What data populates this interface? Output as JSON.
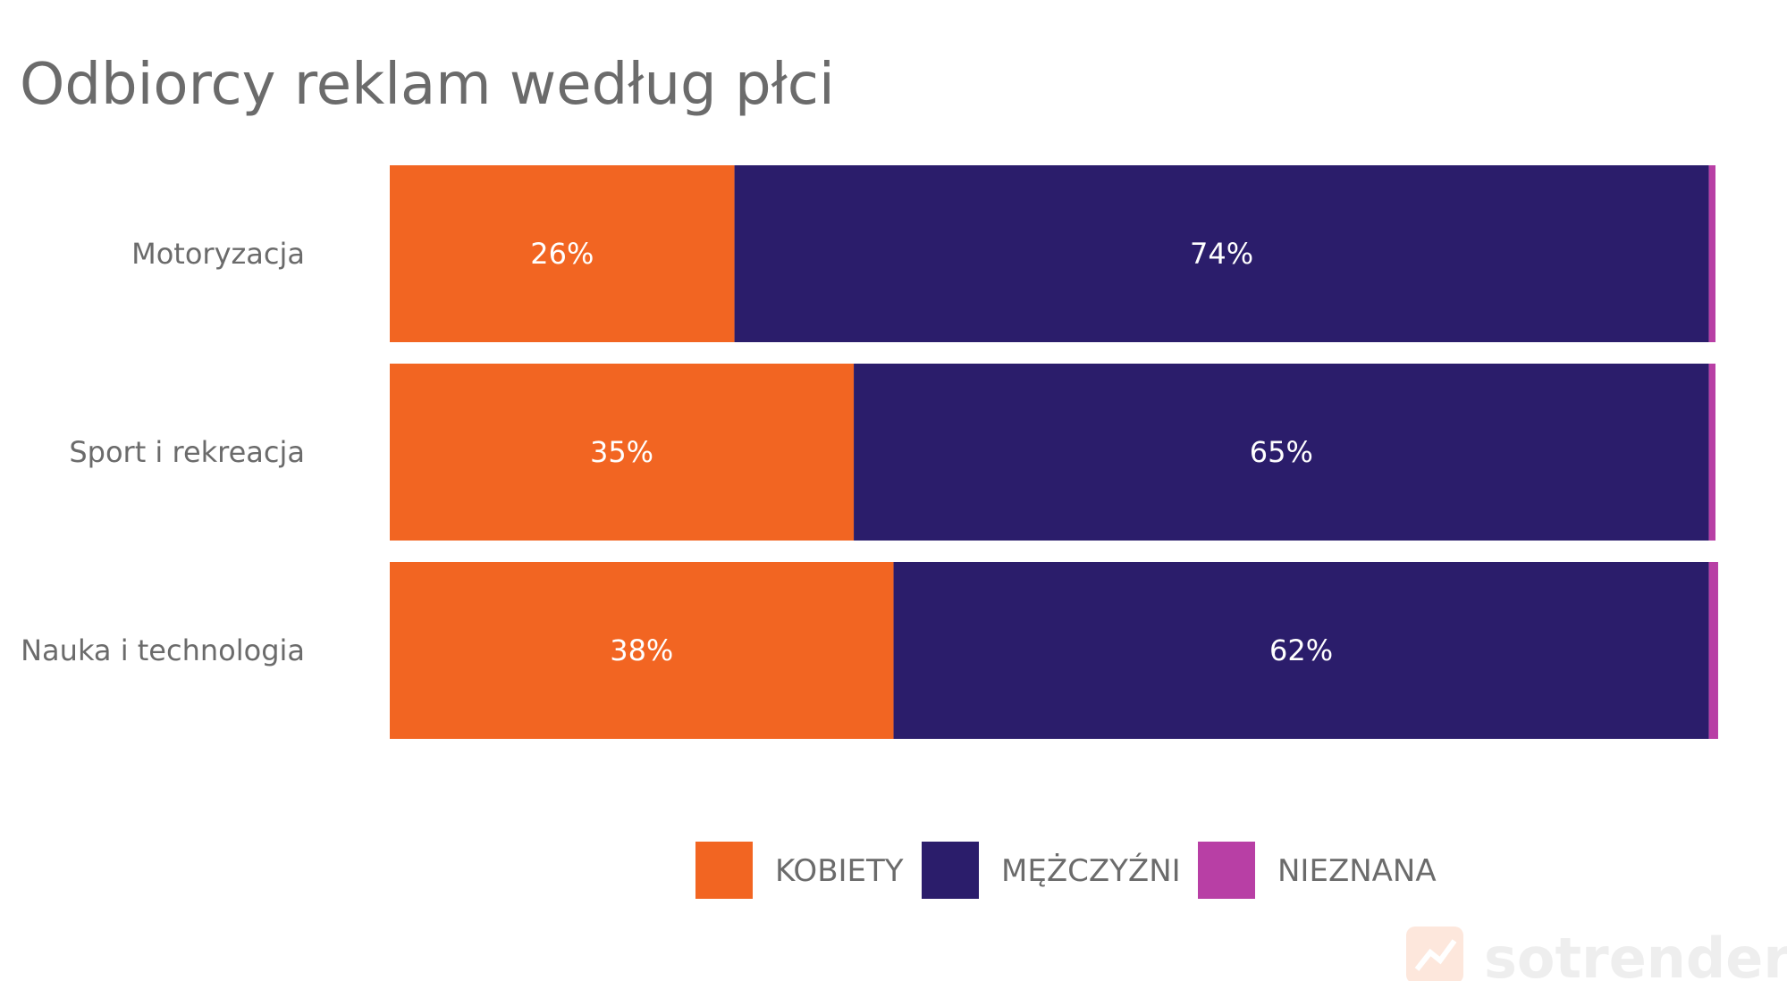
{
  "chart_data": {
    "type": "bar",
    "orientation": "horizontal",
    "stacked": true,
    "title": "Odbiorcy reklam według płci",
    "categories": [
      "Motoryzacja",
      "Sport i rekreacja",
      "Nauka i technologia"
    ],
    "series": [
      {
        "name": "KOBIETY",
        "color": "#f26522",
        "values": [
          26,
          35,
          38
        ],
        "labels": [
          "26%",
          "35%",
          "38%"
        ]
      },
      {
        "name": "MĘŻCZYŹNI",
        "color": "#2b1d6b",
        "values": [
          73.5,
          64.5,
          61.5
        ],
        "labels": [
          "74%",
          "65%",
          "62%"
        ]
      },
      {
        "name": "NIEZNANA",
        "color": "#b83fa5",
        "values": [
          0.5,
          0.5,
          0.7
        ]
      }
    ],
    "xlim": [
      0,
      100
    ],
    "grid": false,
    "legend_position": "bottom"
  },
  "watermark": "sotrender"
}
